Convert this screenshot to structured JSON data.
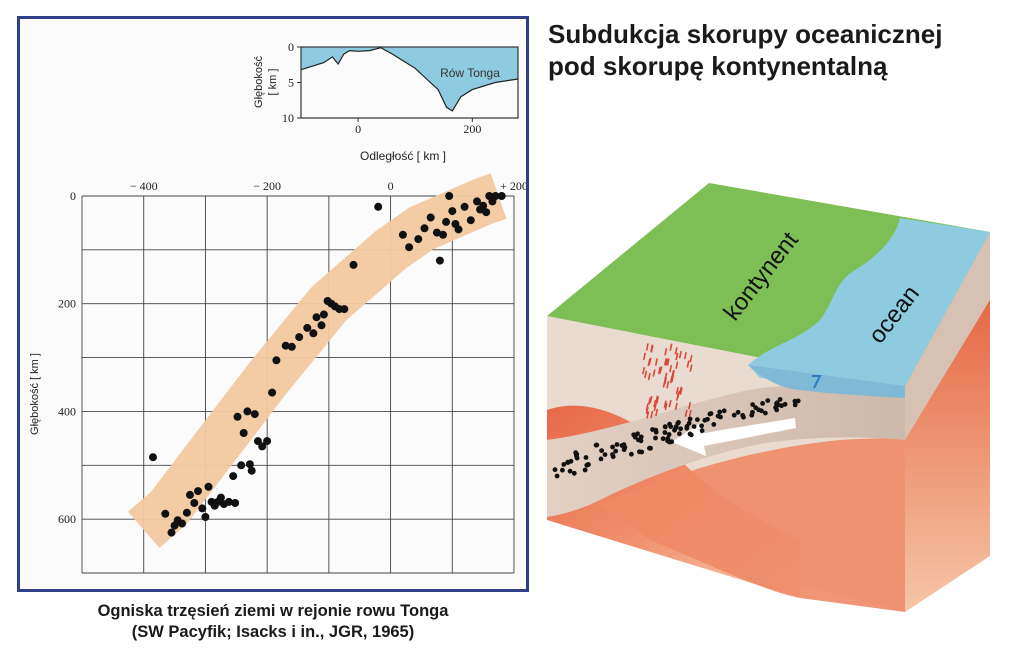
{
  "title": {
    "line1": "Subdukcja skorupy oceanicznej",
    "line2": "pod skorupę kontynentalną"
  },
  "caption": {
    "line1": "Ogniska trzęsień ziemi w rejonie rowu Tonga",
    "line2": "(SW Pacyfik; Isacks i in., JGR, 1965)"
  },
  "inset": {
    "ylabel_line1": "Głębokość",
    "ylabel_line2": "[ km ]",
    "xlabel": "Odległość  [ km ]",
    "trench_label": "Rów Tonga",
    "ocean_color": "#8fcbe0",
    "chart_data": {
      "type": "area",
      "x_ticks": [
        0,
        200
      ],
      "y_ticks": [
        0,
        5,
        10
      ],
      "xlim": [
        -100,
        280
      ],
      "ylim": [
        10,
        0
      ],
      "profile": {
        "x": [
          -100,
          -60,
          -45,
          -35,
          -25,
          -15,
          0,
          20,
          40,
          60,
          80,
          100,
          120,
          140,
          155,
          165,
          180,
          200,
          240,
          280
        ],
        "depth": [
          3.2,
          2.2,
          1.4,
          2.4,
          1.0,
          0.5,
          0.6,
          0.5,
          0.1,
          1.0,
          2.0,
          3.0,
          4.5,
          6.0,
          8.5,
          9.0,
          7.0,
          6.0,
          5.0,
          4.5
        ]
      }
    }
  },
  "main": {
    "ylabel": "Głębokość  [ km ]",
    "band_color": "#f2c9a0",
    "chart_data": {
      "type": "scatter",
      "x_ticks": [
        -400,
        -200,
        0,
        200
      ],
      "x_tick_labels": [
        "− 400",
        "− 200",
        "0",
        "+ 200"
      ],
      "y_ticks": [
        0,
        200,
        400,
        600
      ],
      "xlim": [
        -500,
        200
      ],
      "ylim": [
        0,
        700
      ],
      "band": {
        "center_x": [
          -400,
          -360,
          -300,
          -250,
          -200,
          -150,
          -100,
          -50,
          0,
          50,
          100,
          150,
          175
        ],
        "center_y": [
          620,
          580,
          490,
          415,
          340,
          270,
          200,
          150,
          100,
          60,
          35,
          10,
          0
        ]
      },
      "points": {
        "x": [
          -385,
          -365,
          -355,
          -350,
          -345,
          -338,
          -330,
          -325,
          -318,
          -312,
          -305,
          -300,
          -295,
          -290,
          -285,
          -280,
          -275,
          -270,
          -262,
          -255,
          -252,
          -248,
          -242,
          -238,
          -232,
          -228,
          -225,
          -220,
          -215,
          -208,
          -200,
          -192,
          -185,
          -170,
          -160,
          -148,
          -135,
          -125,
          -120,
          -112,
          -108,
          -102,
          -96,
          -90,
          -83,
          -75,
          -60,
          -20,
          20,
          30,
          45,
          55,
          65,
          75,
          80,
          85,
          90,
          95,
          100,
          105,
          110,
          120,
          130,
          140,
          145,
          160,
          170,
          180,
          155,
          150,
          165
        ],
        "y": [
          485,
          590,
          625,
          612,
          602,
          608,
          588,
          555,
          570,
          548,
          580,
          596,
          540,
          568,
          575,
          568,
          560,
          572,
          568,
          520,
          570,
          410,
          500,
          440,
          400,
          498,
          510,
          405,
          455,
          465,
          455,
          365,
          305,
          278,
          280,
          262,
          245,
          255,
          225,
          240,
          220,
          195,
          200,
          205,
          210,
          210,
          128,
          20,
          72,
          95,
          80,
          60,
          40,
          68,
          120,
          72,
          48,
          0,
          28,
          52,
          62,
          20,
          45,
          10,
          25,
          0,
          0,
          0,
          30,
          18,
          10
        ]
      }
    }
  },
  "block": {
    "continent_label": "kontynent",
    "ocean_label": "ocean",
    "continent_color": "#72bf50",
    "ocean_color": "#8fcbe0",
    "mantle_color": "#e1704b",
    "crust_color": "#d8c6b6"
  }
}
